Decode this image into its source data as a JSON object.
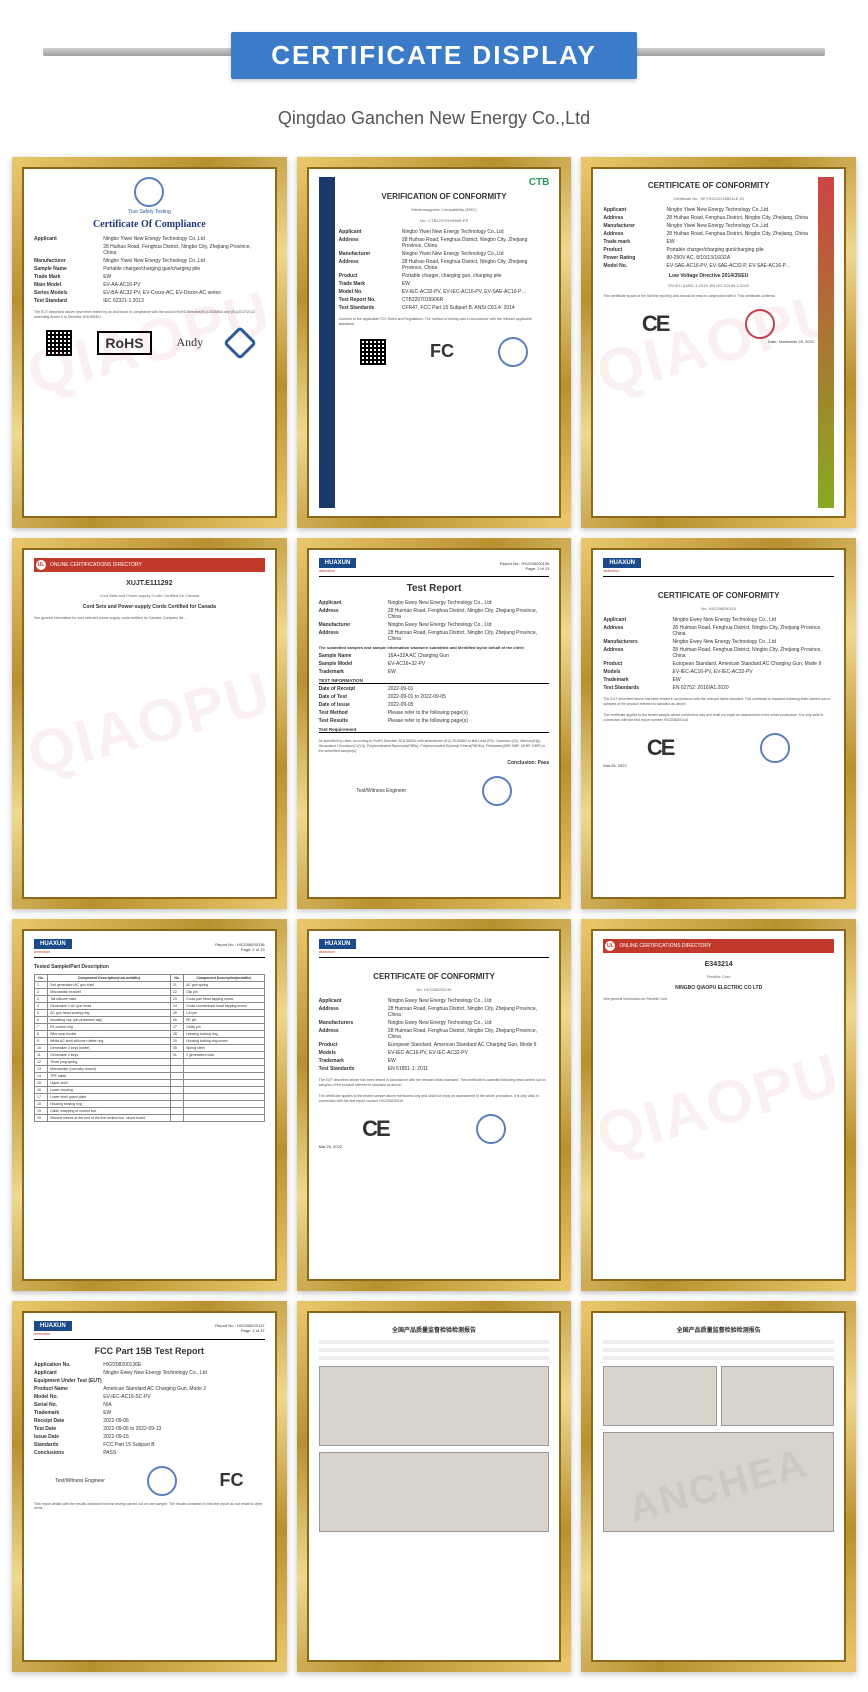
{
  "banner": {
    "title": "CERTIFICATE DISPLAY"
  },
  "subtitle": "Qingdao Ganchen New Energy Co.,Ltd",
  "watermark": "QIAOPU",
  "frame": {
    "gold_light": "#e8c56a",
    "gold_dark": "#b8912f",
    "gold_hl": "#f0d890"
  },
  "banner_color": "#3b7bc8",
  "certs": [
    {
      "id": "rohs",
      "title": "Certificate Of Compliance",
      "issuer": "True Safety Testing",
      "badge": "RoHS",
      "signer": "Andy",
      "fields": [
        {
          "lbl": "Applicant",
          "val": "Ningbo Yiwei New Energy Technology Co.,Ltd"
        },
        {
          "lbl": "",
          "val": "28 Huihao Road, Fenghua District, Ningbo City, Zhejiang Province, China"
        },
        {
          "lbl": "Manufacturer",
          "val": "Ningbo Yiwei New Energy Technology Co.,Ltd"
        },
        {
          "lbl": "Sample Name",
          "val": "Portable charger/charging gun/charging pile"
        },
        {
          "lbl": "Trade Mark",
          "val": "EW"
        },
        {
          "lbl": "Main Model",
          "val": "EV-AA-AC16-PV"
        },
        {
          "lbl": "Series Models",
          "val": "EV-BA-AC32-PV, EV-Cxxxx-AC, EV-Dxxxx-AC series"
        },
        {
          "lbl": "Test Standard",
          "val": "IEC 62321-1:2013"
        }
      ],
      "body": "The EUT described above have been tested by us and found in compliance with the council RoHS Directive(EU) 2015/863 and (EU)2017/2102 amending Annex II to Directive 2011/65/EU…"
    },
    {
      "id": "fcc",
      "title": "VERIFICATION OF CONFORMITY",
      "sub": "Electromagnetic Compatibility (EMC)",
      "ref": "No.: CTB2207019906R-ES",
      "brand": "CTB",
      "side_text": "VERIFICATION • VERIFICATION • VERIFICATION",
      "fields": [
        {
          "lbl": "Applicant",
          "val": "Ningbo Yiwei New Energy Technology Co.,Ltd"
        },
        {
          "lbl": "Address",
          "val": "28 Huihao Road, Fenghua District, Ningbo City, Zhejiang Province, China"
        },
        {
          "lbl": "Manufacturer",
          "val": "Ningbo Yiwei New Energy Technology Co.,Ltd"
        },
        {
          "lbl": "Address",
          "val": "28 Huihao Road, Fenghua District, Ningbo City, Zhejiang Province, China"
        },
        {
          "lbl": "Product",
          "val": "Portable charger, charging gun, charging pile"
        },
        {
          "lbl": "Trade Mark",
          "val": "EW"
        },
        {
          "lbl": "Model No.",
          "val": "EV-IEC-AC32-PV, EV-IEC-AC16-PV, EV-SAE-AC16-P…"
        },
        {
          "lbl": "Test Report No.",
          "val": "CTB2207019906R"
        },
        {
          "lbl": "Test Standards",
          "val": "CFR47, FCC Part 15 Subpart B, ANSI C63.4: 2014"
        }
      ],
      "body": "Conform to the applicable FCC Rules and Regulations. The method of testing was in accordance with the relevant applicable standards…",
      "mark": "FC"
    },
    {
      "id": "ce1",
      "title": "CERTIFICATE OF CONFORMITY",
      "ref": "Certificate No.: KEYS2212216801LE-01",
      "issuer": "KEYS Testing Technology Co.,Ltd",
      "fields": [
        {
          "lbl": "Applicant",
          "val": "Ningbo Yiwei New Energy Technology Co.,Ltd"
        },
        {
          "lbl": "Address",
          "val": "28 Huihao Road, Fenghua District, Ningbo City, Zhejiang, China"
        },
        {
          "lbl": "Manufacturer",
          "val": "Ningbo Yiwei New Energy Technology Co.,Ltd"
        },
        {
          "lbl": "Address",
          "val": "28 Huihao Road, Fenghua District, Ningbo City, Zhejiang, China"
        },
        {
          "lbl": "Trade mark",
          "val": "EW"
        },
        {
          "lbl": "Product",
          "val": "Portable charger/charging gun/charging pile"
        },
        {
          "lbl": "Power Rating",
          "val": "80-250V AC, 8/10/13/16/32A"
        },
        {
          "lbl": "Model No.",
          "val": "EV-SAE-AC16-PV, EV-SAE-AC32-P, EV-SAE-AC16-P…"
        }
      ],
      "directive": "Low Voltage Directive 2014/35/EU",
      "std": "EN IEC 61851-1:2019; EN IEC 62196-1:2022",
      "body": "This certificate is part of the full test report(s) and should be read in conjunction with it. This certificate confirms…",
      "date": "Date: November 25, 2022",
      "mark": "CE"
    },
    {
      "id": "ul",
      "hdr": "ONLINE CERTIFICATIONS DIRECTORY",
      "title": "XUJT.E111292",
      "sub": "Cord Sets and Power-supply Cords Certified for Canada",
      "title2": "Cord Sets and Power-supply Cords Certified for Canada",
      "body": "See general information for cord sets and power-supply cords certified for Canada. Company list…"
    },
    {
      "id": "test1",
      "brand": "HUAXUN",
      "det": "detection",
      "report_no": "Report No.: HX2208200136",
      "page": "Page: 1 of 13",
      "title": "Test Report",
      "fields": [
        {
          "lbl": "Applicant",
          "val": "Ningbo Ewey New Energy Technology Co., Ltd"
        },
        {
          "lbl": "Address",
          "val": "28 Huimao Road, Fenghua District, Ningbo City, Zhejiang Province, China"
        },
        {
          "lbl": "Manufacturer",
          "val": "Ningbo Ewey New Energy Technology Co., Ltd"
        },
        {
          "lbl": "Address",
          "val": "28 Huimao Road, Fenghua District, Ningbo City, Zhejiang Province, China"
        }
      ],
      "note": "The submitted samples and sample information was/were submitted and identified by/on behalf of the client",
      "fields2": [
        {
          "lbl": "Sample Name",
          "val": "16A+32A AC Charging Gun"
        },
        {
          "lbl": "Sample Model",
          "val": "EV-AC16+32-PV"
        },
        {
          "lbl": "Trademark",
          "val": "EW"
        }
      ],
      "sec": "TEST INFORMATION",
      "fields3": [
        {
          "lbl": "Date of Receipt",
          "val": "2022-09-01"
        },
        {
          "lbl": "Date of Test",
          "val": "2022-09-01 to 2022-09-05"
        },
        {
          "lbl": "Date of Issue",
          "val": "2022-09-05"
        },
        {
          "lbl": "Test Method",
          "val": "Please refer to the following page(s)"
        },
        {
          "lbl": "Test Results",
          "val": "Please refer to the following page(s)"
        }
      ],
      "sec2": "Test Requirement",
      "req": "As specified by client, according to RoHS Directive 2011/65/EU with amendment (EU) 2015/863 to test Lead (Pb), Cadmium (Cd), Mercury(Hg), Hexavalent Chromium(Cr(VI)), Polybrominated Biphenyls(PBBs), Polybrominated Diphenyl Ethers(PBDEs), Phthalates(DBP, BBP, DEHP, DIBP) in the submitted sample(s).",
      "concl": "Conclusion: Pass",
      "roles": "Test/Witness Engineer",
      "footer": "Shenzhen HX Detect Certification Co., Ltd"
    },
    {
      "id": "ce2",
      "brand": "HUAXUN",
      "det": "detection",
      "title": "CERTIFICATE OF CONFORMITY",
      "ref": "No. HX2208200116",
      "fields": [
        {
          "lbl": "Applicant",
          "val": "Ningbo Ewey New Energy Technology Co., Ltd"
        },
        {
          "lbl": "Address",
          "val": "28 Huimao Road, Fenghua District, Ningbo City, Zhejiang Province, China"
        },
        {
          "lbl": "Manufacturers",
          "val": "Ningbo Ewey New Energy Technology Co., Ltd"
        },
        {
          "lbl": "Address",
          "val": "28 Huimao Road, Fenghua District, Ningbo City, Zhejiang Province, China"
        },
        {
          "lbl": "Product",
          "val": "European Standard, American Standard AC Charging Gun, Mode II"
        },
        {
          "lbl": "Models",
          "val": "EV-IEC-AC16-PV, EV-IEC-AC32-PV"
        },
        {
          "lbl": "Trademark",
          "val": "EW"
        },
        {
          "lbl": "Test Standards",
          "val": "EN 62752: 2016/A1:2020"
        }
      ],
      "body": "The EUT described above has been tested in accordance with the relevant listed standard. This certificate is awarded following tests carried out on samples of the product referred to standard as above.",
      "body2": "The certificate applies to the tested sample above mentioned only and shall not imply an assessment of the whole production. It is only valid in connection with the test report number HX2208200116.",
      "date": "Mar.26, 2022",
      "mark": "CE"
    },
    {
      "id": "parts",
      "brand": "HUAXUN",
      "det": "detection",
      "report_no": "Report No.: HX2208200136",
      "page": "Page: 2 of 13",
      "title": "Tested Sample/Part Description",
      "cols": [
        "No.",
        "Component Description(non-metallic)",
        "No.",
        "Component Description(metallic)"
      ],
      "rows": [
        [
          "1",
          "2nd generation AC gun shell",
          "21",
          "AC gun spring"
        ],
        [
          "2",
          "Microswitch bracket",
          "22",
          "Clip pin"
        ],
        [
          "3",
          "Tail silicone case",
          "23",
          "Cross pan head tapping screw"
        ],
        [
          "4",
          "Generalize 2 AC gun head",
          "24",
          "Cross countersunk head tapping screw"
        ],
        [
          "5",
          "AC gun head sealing ring",
          "25",
          "L/N pin"
        ],
        [
          "6",
          "Insulating cap (pin protective cap)",
          "26",
          "PE pin"
        ],
        [
          "7",
          "R1 control ring",
          "27",
          "Clutty pin"
        ],
        [
          "8",
          "Wire near buckle",
          "28",
          "Housing locking ring"
        ],
        [
          "9",
          "White AC shell silicone rubber ring",
          "29",
          "Housing locking ring screw"
        ],
        [
          "10",
          "Generalize 2 keys (white)",
          "30",
          "Spring steel"
        ],
        [
          "11",
          "Generalize 2 keys",
          "31",
          "2 generation hook"
        ],
        [
          "12",
          "Three plug spring",
          "",
          ""
        ],
        [
          "13",
          "Microswitch (normally closed)",
          "",
          ""
        ],
        [
          "14",
          "TPE cable",
          "",
          ""
        ],
        [
          "15",
          "Upper shell",
          "",
          ""
        ],
        [
          "16",
          "Lower housing",
          "",
          ""
        ],
        [
          "17",
          "Lower shell guard plate",
          "",
          ""
        ],
        [
          "18",
          "Housing sealing ring",
          "",
          ""
        ],
        [
          "19",
          "Cabin wrapping of control box",
          "",
          ""
        ],
        [
          "20",
          "Silicone sleeve at the end of the live control box, circuit board",
          "",
          ""
        ]
      ],
      "footer": "Shenzhen HX Detect Certification Co., Ltd"
    },
    {
      "id": "ce3",
      "brand": "HUAXUN",
      "det": "detection",
      "title": "CERTIFICATE OF CONFORMITY",
      "ref": "No. HX2208200119",
      "fields": [
        {
          "lbl": "Applicant",
          "val": "Ningbo Ewey New Energy Technology Co., Ltd"
        },
        {
          "lbl": "Address",
          "val": "28 Huimao Road, Fenghua District, Ningbo City, Zhejiang Province, China"
        },
        {
          "lbl": "Manufacturers",
          "val": "Ningbo Ewey New Energy Technology Co., Ltd"
        },
        {
          "lbl": "Address",
          "val": "28 Huimao Road, Fenghua District, Ningbo City, Zhejiang Province, China"
        },
        {
          "lbl": "Product",
          "val": "European Standard, American Standard AC Charging Gun, Mode II"
        },
        {
          "lbl": "Models",
          "val": "EV-IEC-AC16-PV, EV-IEC-AC32-PV"
        },
        {
          "lbl": "Trademark",
          "val": "EW"
        },
        {
          "lbl": "Test Standards",
          "val": "EN 61851-1: 2011"
        }
      ],
      "body": "The EUT described above has been tested in accordance with the relevant listed standard. This certificate is awarded following tests carried out on samples of the product referred to standard as above.",
      "body2": "The certificate applies to the tested sample above mentioned only and shall not imply an assessment of the whole production. It is only valid in connection with the test report number HX2208200119.",
      "date": "Mar.26, 2022",
      "mark": "CE"
    },
    {
      "id": "ul2",
      "hdr": "ONLINE CERTIFICATIONS DIRECTORY",
      "title": "E343214",
      "sub": "Flexible Cord",
      "org": "NINGBO QIAOPU ELECTRIC CO LTD",
      "body": "See general information for Flexible Cord"
    },
    {
      "id": "fcc15",
      "brand": "HUAXUN",
      "det": "detection",
      "report_no": "Report No.: HX2208200137",
      "page": "Page: 1 of 37",
      "title": "FCC Part 15B Test Report",
      "fields": [
        {
          "lbl": "Application No.",
          "val": "HX2208200136E"
        },
        {
          "lbl": "Applicant",
          "val": "Ningbo Ewey New Energy Technology Co., Ltd"
        },
        {
          "lbl": "Equipment Under Test (EUT)",
          "val": ""
        },
        {
          "lbl": "Product Name",
          "val": "American Standard AC Charging Gun, Mode 2"
        },
        {
          "lbl": "Model No.",
          "val": "EV-IEC-AC16-SC-PV"
        },
        {
          "lbl": "Serial No.",
          "val": "N/A"
        },
        {
          "lbl": "Trademark",
          "val": "EW"
        },
        {
          "lbl": "Receipt Date",
          "val": "2022-09-06"
        },
        {
          "lbl": "Test Date",
          "val": "2022-09-06 to 2022-09-13"
        },
        {
          "lbl": "Issue Date",
          "val": "2022-09-15"
        },
        {
          "lbl": "Standards",
          "val": "FCC Part 15 Subpart B"
        },
        {
          "lbl": "Conclusions",
          "val": "PASS"
        }
      ],
      "roles": "Test/Witness Engineer",
      "body": "This report details with the results obtained from the testing carried out on one sample. The results contained in this test report do not relate to other items…",
      "mark": "FC"
    },
    {
      "id": "cn1",
      "title": "全国产品质量监督检验检测报告",
      "photos": 2
    },
    {
      "id": "cn2",
      "title": "全国产品质量监督检验检测报告",
      "photos": 2,
      "wm2": "ANCHEA"
    }
  ]
}
